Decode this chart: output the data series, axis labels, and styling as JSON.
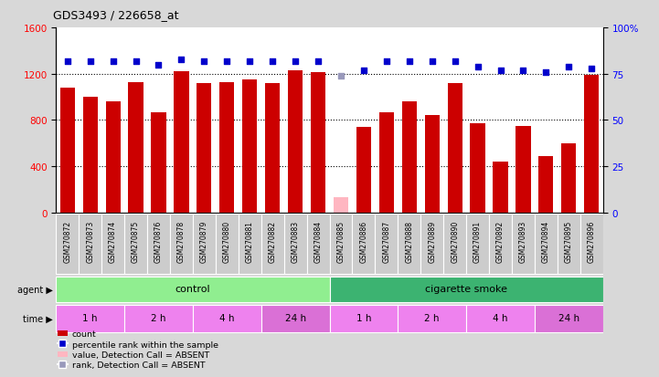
{
  "title": "GDS3493 / 226658_at",
  "samples": [
    "GSM270872",
    "GSM270873",
    "GSM270874",
    "GSM270875",
    "GSM270876",
    "GSM270878",
    "GSM270879",
    "GSM270880",
    "GSM270881",
    "GSM270882",
    "GSM270883",
    "GSM270884",
    "GSM270885",
    "GSM270886",
    "GSM270887",
    "GSM270888",
    "GSM270889",
    "GSM270890",
    "GSM270891",
    "GSM270892",
    "GSM270893",
    "GSM270894",
    "GSM270895",
    "GSM270896"
  ],
  "counts": [
    1080,
    1000,
    960,
    1130,
    870,
    1220,
    1120,
    1130,
    1150,
    1120,
    1230,
    1215,
    130,
    740,
    870,
    960,
    840,
    1120,
    770,
    440,
    750,
    490,
    600,
    1190
  ],
  "absent_count": [
    false,
    false,
    false,
    false,
    false,
    false,
    false,
    false,
    false,
    false,
    false,
    false,
    true,
    false,
    false,
    false,
    false,
    false,
    false,
    false,
    false,
    false,
    false,
    false
  ],
  "percentiles": [
    82,
    82,
    82,
    82,
    80,
    83,
    82,
    82,
    82,
    82,
    82,
    82,
    74,
    77,
    82,
    82,
    82,
    82,
    79,
    77,
    77,
    76,
    79,
    78
  ],
  "absent_percentile": [
    false,
    false,
    false,
    false,
    false,
    false,
    false,
    false,
    false,
    false,
    false,
    false,
    true,
    false,
    false,
    false,
    false,
    false,
    false,
    false,
    false,
    false,
    false,
    false
  ],
  "bar_color": "#cc0000",
  "absent_bar_color": "#ffb6c1",
  "dot_color": "#0000cc",
  "absent_dot_color": "#9999bb",
  "ylim_left": [
    0,
    1600
  ],
  "ylim_right": [
    0,
    100
  ],
  "yticks_left": [
    0,
    400,
    800,
    1200,
    1600
  ],
  "yticks_right": [
    0,
    25,
    50,
    75,
    100
  ],
  "grid_values": [
    400,
    800,
    1200
  ],
  "agent_regions": [
    {
      "label": "control",
      "start": 0,
      "end": 12,
      "color": "#90ee90"
    },
    {
      "label": "cigarette smoke",
      "start": 12,
      "end": 24,
      "color": "#3cb371"
    }
  ],
  "time_regions": [
    {
      "label": "1 h",
      "start": 0,
      "end": 3,
      "color": "#ee82ee"
    },
    {
      "label": "2 h",
      "start": 3,
      "end": 6,
      "color": "#ee82ee"
    },
    {
      "label": "4 h",
      "start": 6,
      "end": 9,
      "color": "#ee82ee"
    },
    {
      "label": "24 h",
      "start": 9,
      "end": 12,
      "color": "#da70d6"
    },
    {
      "label": "1 h",
      "start": 12,
      "end": 15,
      "color": "#ee82ee"
    },
    {
      "label": "2 h",
      "start": 15,
      "end": 18,
      "color": "#ee82ee"
    },
    {
      "label": "4 h",
      "start": 18,
      "end": 21,
      "color": "#ee82ee"
    },
    {
      "label": "24 h",
      "start": 21,
      "end": 24,
      "color": "#da70d6"
    }
  ],
  "fig_bg": "#d8d8d8",
  "plot_bg": "#ffffff",
  "xticklabel_bg": "#d0d0d0"
}
